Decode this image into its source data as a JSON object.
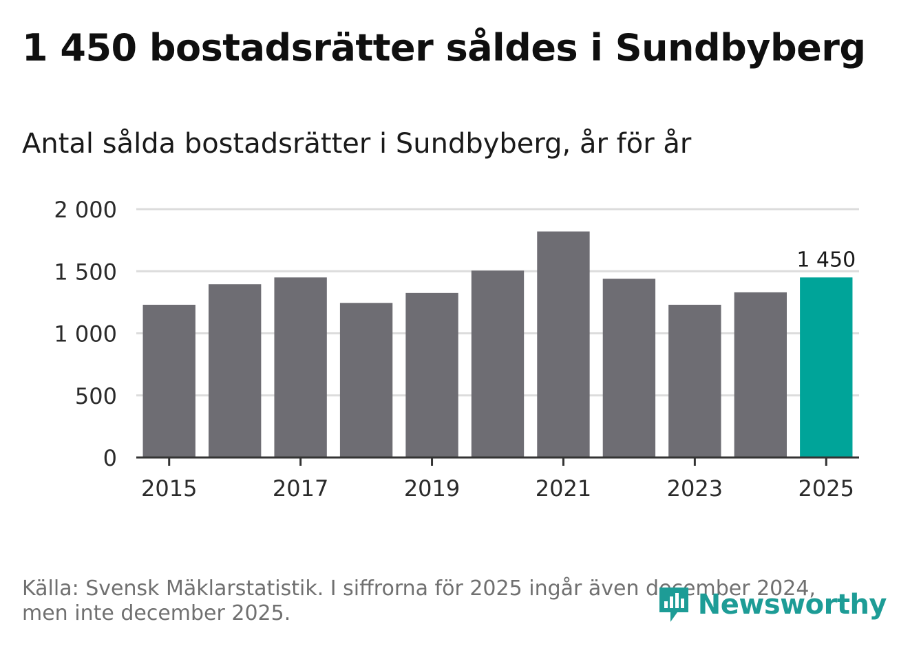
{
  "title": "1 450 bostadsrätter såldes i Sundbyberg",
  "subtitle": "Antal sålda bostadsrätter i Sundbyberg, år för år",
  "footnote": {
    "line1": "Källa: Svensk Mäklarstatistik. I siffrorna för 2025 ingår även december 2024,",
    "line2": "men inte december 2025."
  },
  "brand": {
    "name": "Newsworthy",
    "color": "#1d9c96"
  },
  "colors": {
    "bar": "#6e6d73",
    "highlight": "#00a499",
    "grid": "#dcdcdc",
    "axis": "#333333"
  },
  "chart_data": {
    "type": "bar",
    "title": "Antal sålda bostadsrätter i Sundbyberg, år för år",
    "xlabel": "",
    "ylabel": "",
    "categories": [
      "2015",
      "2016",
      "2017",
      "2018",
      "2019",
      "2020",
      "2021",
      "2022",
      "2023",
      "2024",
      "2025"
    ],
    "values": [
      1230,
      1395,
      1450,
      1245,
      1325,
      1505,
      1820,
      1440,
      1230,
      1330,
      1450
    ],
    "highlight_index": 10,
    "highlight_label": "1 450",
    "x_tick_labels": [
      "2015",
      "2017",
      "2019",
      "2021",
      "2023",
      "2025"
    ],
    "y_ticks": [
      0,
      500,
      1000,
      1500,
      2000
    ],
    "y_tick_labels": [
      "0",
      "500",
      "1 000",
      "1 500",
      "2 000"
    ],
    "ylim": [
      0,
      2000
    ],
    "grid": true
  }
}
